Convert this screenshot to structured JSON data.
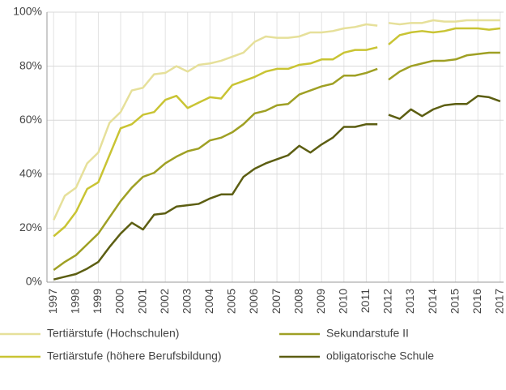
{
  "chart_data": {
    "type": "line",
    "x": [
      1997,
      1997.5,
      1998,
      1998.5,
      1999,
      1999.5,
      2000,
      2000.5,
      2001,
      2001.5,
      2002,
      2002.5,
      2003,
      2003.5,
      2004,
      2004.5,
      2005,
      2005.5,
      2006,
      2006.5,
      2007,
      2007.5,
      2008,
      2008.5,
      2009,
      2009.5,
      2010,
      2010.5,
      2011,
      2011.5,
      2011.75,
      2012,
      2012.5,
      2013,
      2013.5,
      2014,
      2014.5,
      2015,
      2015.5,
      2016,
      2016.5,
      2017
    ],
    "series": [
      {
        "name": "Tertiärstufe (Hochschulen)",
        "color": "#e6e09a",
        "values": [
          23,
          32,
          35,
          44,
          48,
          59,
          63,
          71,
          72,
          77,
          77.5,
          80,
          78,
          80.5,
          81,
          82,
          83.5,
          85,
          89,
          91,
          90.5,
          90.5,
          91,
          92.5,
          92.5,
          93,
          94,
          94.5,
          95.5,
          95,
          null,
          96,
          95.5,
          96,
          96,
          97,
          96.5,
          96.5,
          97,
          97,
          97,
          97
        ]
      },
      {
        "name": "Tertiärstufe (höhere Berufsbildung)",
        "color": "#c9c433",
        "values": [
          17,
          20.5,
          26,
          34.5,
          37,
          47,
          57,
          58.5,
          62,
          63,
          67.5,
          69,
          64.5,
          66.5,
          68.5,
          68,
          73,
          74.5,
          76,
          78,
          79,
          79,
          80.5,
          81,
          82.5,
          82.5,
          85,
          86,
          86,
          87,
          null,
          88,
          91.5,
          92.5,
          93,
          92.5,
          93,
          94,
          94,
          94,
          93.5,
          94
        ]
      },
      {
        "name": "Sekundarstufe II",
        "color": "#9fa024",
        "values": [
          4.5,
          7.5,
          10,
          14,
          18,
          24,
          30,
          35,
          39,
          40.5,
          44,
          46.5,
          48.5,
          49.5,
          52.5,
          53.5,
          55.5,
          58.5,
          62.5,
          63.5,
          65.5,
          66,
          69.5,
          71,
          72.5,
          73.5,
          76.5,
          76.5,
          77.5,
          79,
          null,
          75,
          78,
          80,
          81,
          82,
          82,
          82.5,
          84,
          84.5,
          85,
          85
        ]
      },
      {
        "name": "obligatorische Schule",
        "color": "#5c5e12",
        "values": [
          1,
          2,
          3,
          5,
          7.5,
          13,
          18,
          22,
          19.5,
          25,
          25.5,
          28,
          28.5,
          29,
          31,
          32.5,
          32.5,
          39,
          42,
          44,
          45.5,
          47,
          50.5,
          48,
          51,
          53.5,
          57.5,
          57.5,
          58.5,
          58.5,
          null,
          62,
          60.5,
          64,
          61.5,
          64,
          65.5,
          66,
          66,
          69,
          68.5,
          67
        ]
      }
    ],
    "xlim": [
      1996.7,
      2017.15
    ],
    "xticks": [
      1997,
      1998,
      1999,
      2000,
      2001,
      2002,
      2003,
      2004,
      2005,
      2006,
      2007,
      2008,
      2009,
      2010,
      2011,
      2012,
      2013,
      2014,
      2015,
      2016,
      2017
    ],
    "ylim": [
      0,
      100
    ],
    "yticks": [
      {
        "value": 0,
        "label": "0%"
      },
      {
        "value": 20,
        "label": "20%"
      },
      {
        "value": 40,
        "label": "40%"
      },
      {
        "value": 60,
        "label": "60%"
      },
      {
        "value": 80,
        "label": "80%"
      },
      {
        "value": 100,
        "label": "100%"
      }
    ],
    "grid": true
  }
}
